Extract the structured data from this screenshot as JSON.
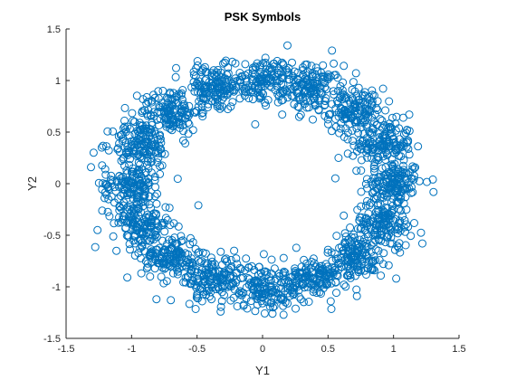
{
  "chart_data": {
    "type": "scatter",
    "title": "PSK Symbols",
    "xlabel": "Y1",
    "ylabel": "Y2",
    "xlim": [
      -1.5,
      1.5
    ],
    "ylim": [
      -1.5,
      1.5
    ],
    "xticks": [
      -1.5,
      -1,
      -0.5,
      0,
      0.5,
      1,
      1.5
    ],
    "yticks": [
      -1.5,
      -1,
      -0.5,
      0,
      0.5,
      1,
      1.5
    ],
    "xtick_labels": [
      "-1.5",
      "-1",
      "-0.5",
      "0",
      "0.5",
      "1",
      "1.5"
    ],
    "ytick_labels": [
      "-1.5",
      "-1",
      "-0.5",
      "0",
      "0.5",
      "1",
      "1.5"
    ],
    "grid": false,
    "marker": "open-circle",
    "color": "#0072BD",
    "constellation": {
      "order": 16,
      "radius": 1.0,
      "phase_offset_deg": 0,
      "noise_std": 0.11
    },
    "series": [
      {
        "values": [
          [
            1.0,
            0.0
          ],
          [
            0.924,
            0.383
          ],
          [
            0.707,
            0.707
          ],
          [
            0.383,
            0.924
          ],
          [
            0.0,
            1.0
          ],
          [
            -0.383,
            0.924
          ],
          [
            -0.707,
            0.707
          ],
          [
            -0.924,
            0.383
          ],
          [
            -1.0,
            0.0
          ],
          [
            -0.924,
            -0.383
          ],
          [
            -0.707,
            -0.707
          ],
          [
            -0.383,
            -0.924
          ],
          [
            0.0,
            -1.0
          ],
          [
            0.383,
            -0.924
          ],
          [
            0.707,
            -0.707
          ],
          [
            0.924,
            -0.383
          ],
          [
            1.3,
            0.04
          ],
          [
            1.12,
            0.67
          ],
          [
            0.19,
            1.34
          ],
          [
            0.53,
            1.29
          ],
          [
            -0.66,
            1.12
          ],
          [
            -1.29,
            0.3
          ],
          [
            -1.31,
            0.16
          ],
          [
            -1.26,
            -0.45
          ],
          [
            -0.81,
            -1.12
          ],
          [
            -0.7,
            -1.13
          ],
          [
            -0.32,
            -1.24
          ],
          [
            0.08,
            -1.2
          ],
          [
            0.72,
            -1.09
          ],
          [
            1.02,
            -0.92
          ],
          [
            1.22,
            -0.58
          ],
          [
            0.62,
            -0.31
          ],
          [
            0.58,
            0.25
          ],
          [
            0.63,
            -0.48
          ],
          [
            0.65,
            0.43
          ],
          [
            -0.59,
            0.39
          ],
          [
            -0.63,
            0.57
          ],
          [
            -0.61,
            -0.55
          ],
          [
            0.69,
            0.27
          ],
          [
            -0.49,
            -0.21
          ],
          [
            -0.53,
            0.52
          ]
        ]
      }
    ]
  }
}
